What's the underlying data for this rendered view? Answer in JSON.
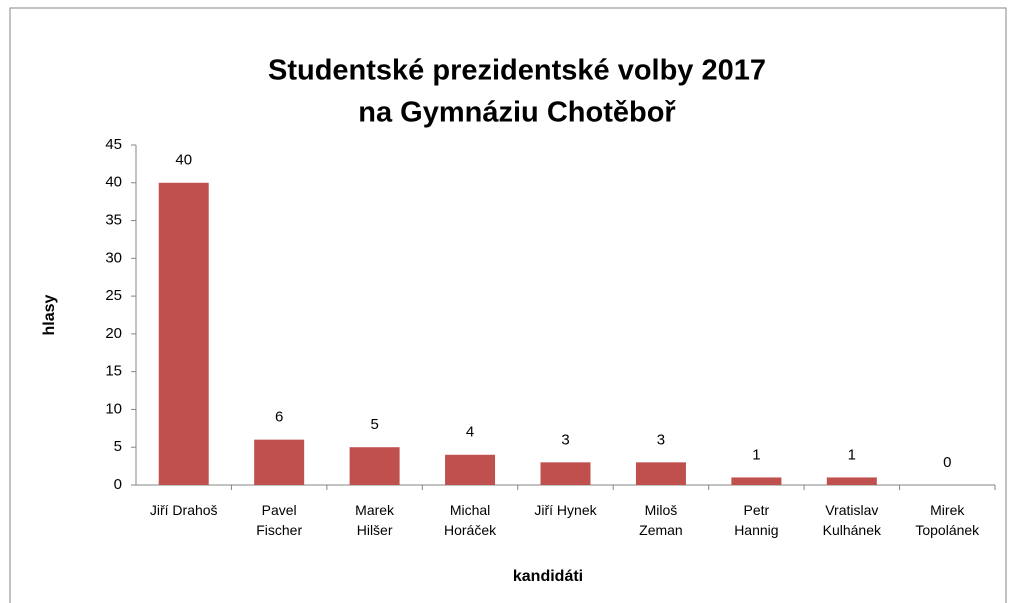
{
  "chart_data": {
    "type": "bar",
    "title": [
      "Studentské prezidentské volby 2017",
      "na Gymnáziu Chotěboř"
    ],
    "x_label": "kandidáti",
    "y_label": "hlasy",
    "categories": [
      "Jiří Drahoš",
      "Pavel Fischer",
      "Marek Hilšer",
      "Michal Horáček",
      "Jiří Hynek",
      "Miloš Zeman",
      "Petr Hannig",
      "Vratislav Kulhánek",
      "Mirek Topolánek"
    ],
    "values": [
      40,
      6,
      5,
      4,
      3,
      3,
      1,
      1,
      0
    ],
    "color": "#c0504d",
    "ylim": [
      0,
      45
    ],
    "yticks": [
      0,
      5,
      10,
      15,
      20,
      25,
      30,
      35,
      40,
      45
    ],
    "grid": false
  }
}
